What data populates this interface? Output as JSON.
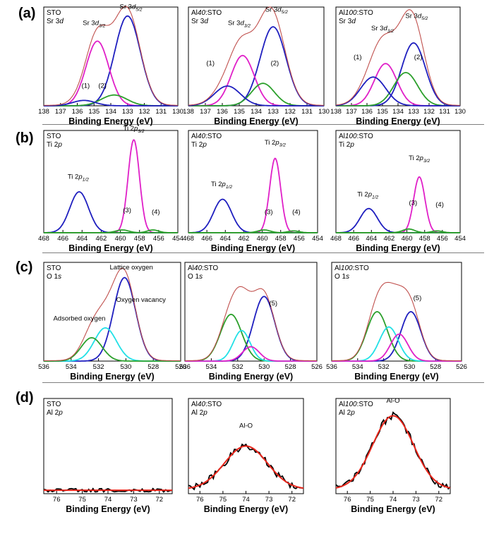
{
  "figure": {
    "rows": [
      {
        "label": "(a)"
      },
      {
        "label": "(b)"
      },
      {
        "label": "(c)"
      },
      {
        "label": "(d)"
      }
    ]
  },
  "colors": {
    "envelope": "#c0504d",
    "blue": "#1f1fbf",
    "magenta": "#e020c8",
    "green": "#2ca02c",
    "cyan": "#22e0e6",
    "raw": "#000000",
    "fit": "#e8251a",
    "axis": "#000000"
  },
  "chart_data": [
    {
      "type": "line",
      "sample": "STO",
      "core_level": "Sr 3d",
      "xlabel": "Binding Energy (eV)",
      "xlim": [
        138,
        130
      ],
      "xticks": [
        138,
        137,
        136,
        135,
        134,
        133,
        132,
        131,
        130
      ],
      "ylim": [
        0,
        1.1
      ],
      "series": [
        {
          "name": "Sr 3d5/2",
          "color": "blue",
          "peak": {
            "center": 133.0,
            "height": 1.0,
            "fwhm": 1.8
          }
        },
        {
          "name": "Sr 3d3/2",
          "color": "magenta",
          "peak": {
            "center": 134.8,
            "height": 0.72,
            "fwhm": 1.6
          }
        },
        {
          "name": "(2)",
          "color": "green",
          "peak": {
            "center": 133.8,
            "height": 0.12,
            "fwhm": 1.8
          }
        },
        {
          "name": "(1)",
          "color": "blue",
          "peak": {
            "center": 135.6,
            "height": 0.06,
            "fwhm": 1.6
          }
        }
      ],
      "envelope": true,
      "annotations": [
        {
          "text": "Sr 3d5/2",
          "x": 132.8,
          "y": 1.08
        },
        {
          "text": "Sr 3d3/2",
          "x": 135.0,
          "y": 0.9
        },
        {
          "text": "(1)",
          "x": 135.5,
          "y": 0.2
        },
        {
          "text": "(2)",
          "x": 134.5,
          "y": 0.2
        }
      ]
    },
    {
      "type": "line",
      "sample": "Al40:STO",
      "core_level": "Sr 3d",
      "xlabel": "Binding Energy (eV)",
      "xlim": [
        138,
        130
      ],
      "xticks": [
        138,
        137,
        136,
        135,
        134,
        133,
        132,
        131,
        130
      ],
      "ylim": [
        0,
        1.1
      ],
      "series": [
        {
          "name": "Sr 3d5/2",
          "color": "blue",
          "peak": {
            "center": 133.0,
            "height": 0.88,
            "fwhm": 1.8
          }
        },
        {
          "name": "Sr 3d3/2",
          "color": "magenta",
          "peak": {
            "center": 134.8,
            "height": 0.56,
            "fwhm": 1.6
          }
        },
        {
          "name": "(2)",
          "color": "green",
          "peak": {
            "center": 133.6,
            "height": 0.25,
            "fwhm": 1.6
          }
        },
        {
          "name": "(1)",
          "color": "blue",
          "peak": {
            "center": 135.7,
            "height": 0.22,
            "fwhm": 1.8
          }
        }
      ],
      "envelope": true,
      "annotations": [
        {
          "text": "Sr 3d5/2",
          "x": 132.8,
          "y": 1.05
        },
        {
          "text": "Sr 3d3/2",
          "x": 135.0,
          "y": 0.9
        },
        {
          "text": "(1)",
          "x": 136.7,
          "y": 0.45
        },
        {
          "text": "(2)",
          "x": 132.9,
          "y": 0.45
        }
      ]
    },
    {
      "type": "line",
      "sample": "Al100:STO",
      "core_level": "Sr 3d",
      "xlabel": "Binding Energy (eV)",
      "xlim": [
        138,
        130
      ],
      "xticks": [
        138,
        137,
        136,
        135,
        134,
        133,
        132,
        131,
        130
      ],
      "ylim": [
        0,
        1.1
      ],
      "series": [
        {
          "name": "Sr 3d5/2",
          "color": "blue",
          "peak": {
            "center": 133.0,
            "height": 0.7,
            "fwhm": 1.8
          }
        },
        {
          "name": "Sr 3d3/2",
          "color": "magenta",
          "peak": {
            "center": 134.8,
            "height": 0.47,
            "fwhm": 1.7
          }
        },
        {
          "name": "(2)",
          "color": "green",
          "peak": {
            "center": 133.5,
            "height": 0.37,
            "fwhm": 1.8
          }
        },
        {
          "name": "(1)",
          "color": "blue",
          "peak": {
            "center": 135.6,
            "height": 0.32,
            "fwhm": 1.9
          }
        }
      ],
      "envelope": true,
      "annotations": [
        {
          "text": "Sr 3d5/2",
          "x": 132.8,
          "y": 0.98
        },
        {
          "text": "Sr 3d3/2",
          "x": 135.0,
          "y": 0.84
        },
        {
          "text": "(1)",
          "x": 136.6,
          "y": 0.52
        },
        {
          "text": "(2)",
          "x": 132.7,
          "y": 0.52
        }
      ]
    },
    {
      "type": "line",
      "sample": "STO",
      "core_level": "Ti 2p",
      "xlabel": "Binding Energy (eV)",
      "xlim": [
        468,
        454
      ],
      "xticks": [
        468,
        466,
        464,
        462,
        460,
        458,
        456,
        454
      ],
      "ylim": [
        0,
        1.1
      ],
      "series": [
        {
          "name": "Ti 2p3/2",
          "color": "magenta",
          "peak": {
            "center": 458.6,
            "height": 1.0,
            "fwhm": 1.4
          }
        },
        {
          "name": "Ti 2p1/2",
          "color": "blue",
          "peak": {
            "center": 464.3,
            "height": 0.44,
            "fwhm": 2.3
          }
        },
        {
          "name": "(3)",
          "color": "green",
          "peak": {
            "center": 459.8,
            "height": 0.03,
            "fwhm": 1.6
          }
        },
        {
          "name": "(4)",
          "color": "green",
          "peak": {
            "center": 456.6,
            "height": 0.03,
            "fwhm": 1.4
          }
        }
      ],
      "envelope": false,
      "annotations": [
        {
          "text": "Ti 2p3/2",
          "x": 458.6,
          "y": 1.1
        },
        {
          "text": "Ti 2p1/2",
          "x": 464.4,
          "y": 0.58
        },
        {
          "text": "(3)",
          "x": 459.3,
          "y": 0.22
        },
        {
          "text": "(4)",
          "x": 456.3,
          "y": 0.2
        }
      ]
    },
    {
      "type": "line",
      "sample": "Al40:STO",
      "core_level": "Ti 2p",
      "xlabel": "Binding Energy (eV)",
      "xlim": [
        468,
        454
      ],
      "xticks": [
        468,
        466,
        464,
        462,
        460,
        458,
        456,
        454
      ],
      "ylim": [
        0,
        1.1
      ],
      "series": [
        {
          "name": "Ti 2p3/2",
          "color": "magenta",
          "peak": {
            "center": 458.6,
            "height": 0.8,
            "fwhm": 1.4
          }
        },
        {
          "name": "Ti 2p1/2",
          "color": "blue",
          "peak": {
            "center": 464.3,
            "height": 0.36,
            "fwhm": 2.3
          }
        },
        {
          "name": "(3)",
          "color": "green",
          "peak": {
            "center": 459.8,
            "height": 0.03,
            "fwhm": 1.6
          }
        },
        {
          "name": "(4)",
          "color": "green",
          "peak": {
            "center": 456.6,
            "height": 0.02,
            "fwhm": 1.4
          }
        }
      ],
      "envelope": false,
      "annotations": [
        {
          "text": "Ti 2p3/2",
          "x": 458.6,
          "y": 0.95
        },
        {
          "text": "Ti 2p1/2",
          "x": 464.4,
          "y": 0.5
        },
        {
          "text": "(3)",
          "x": 459.3,
          "y": 0.2
        },
        {
          "text": "(4)",
          "x": 456.3,
          "y": 0.2
        }
      ]
    },
    {
      "type": "line",
      "sample": "Al100:STO",
      "core_level": "Ti 2p",
      "xlabel": "Binding Energy (eV)",
      "xlim": [
        468,
        454
      ],
      "xticks": [
        468,
        466,
        464,
        462,
        460,
        458,
        456,
        454
      ],
      "ylim": [
        0,
        1.1
      ],
      "series": [
        {
          "name": "Ti 2p3/2",
          "color": "magenta",
          "peak": {
            "center": 458.6,
            "height": 0.6,
            "fwhm": 1.5
          }
        },
        {
          "name": "Ti 2p1/2",
          "color": "blue",
          "peak": {
            "center": 464.3,
            "height": 0.26,
            "fwhm": 2.3
          }
        },
        {
          "name": "(3)",
          "color": "green",
          "peak": {
            "center": 459.8,
            "height": 0.04,
            "fwhm": 1.6
          }
        },
        {
          "name": "(4)",
          "color": "green",
          "peak": {
            "center": 456.6,
            "height": 0.02,
            "fwhm": 1.4
          }
        }
      ],
      "envelope": false,
      "annotations": [
        {
          "text": "Ti 2p3/2",
          "x": 458.6,
          "y": 0.78
        },
        {
          "text": "Ti 2p1/2",
          "x": 464.4,
          "y": 0.39
        },
        {
          "text": "(3)",
          "x": 459.3,
          "y": 0.3
        },
        {
          "text": "(4)",
          "x": 456.3,
          "y": 0.28
        }
      ]
    },
    {
      "type": "line",
      "sample": "STO",
      "core_level": "O 1s",
      "xlabel": "Binding Energy (eV)",
      "xlim": [
        536,
        526
      ],
      "xticks": [
        536,
        534,
        532,
        530,
        528,
        526
      ],
      "ylim": [
        0,
        1.1
      ],
      "series": [
        {
          "name": "Lattice oxygen",
          "color": "blue",
          "peak": {
            "center": 530.1,
            "height": 0.93,
            "fwhm": 1.9
          }
        },
        {
          "name": "Oxygen vacancy",
          "color": "cyan",
          "peak": {
            "center": 531.5,
            "height": 0.37,
            "fwhm": 1.9
          }
        },
        {
          "name": "Adsorbed oxygen",
          "color": "green",
          "peak": {
            "center": 532.5,
            "height": 0.26,
            "fwhm": 1.8
          }
        }
      ],
      "envelope": true,
      "annotations": [
        {
          "text": "Lattice oxygen",
          "x": 529.6,
          "y": 1.02
        },
        {
          "text": "Oxygen vacancy",
          "x": 528.9,
          "y": 0.66
        },
        {
          "text": "Adsorbed oxygen",
          "x": 533.4,
          "y": 0.45
        }
      ]
    },
    {
      "type": "line",
      "sample": "Al40:STO",
      "core_level": "O 1s",
      "xlabel": "Binding Energy (eV)",
      "xlim": [
        536,
        526
      ],
      "xticks": [
        536,
        534,
        532,
        530,
        528,
        526
      ],
      "ylim": [
        0,
        1.1
      ],
      "series": [
        {
          "name": "blue",
          "color": "blue",
          "peak": {
            "center": 530.0,
            "height": 0.72,
            "fwhm": 1.9
          }
        },
        {
          "name": "green",
          "color": "green",
          "peak": {
            "center": 532.5,
            "height": 0.52,
            "fwhm": 1.9
          }
        },
        {
          "name": "cyan",
          "color": "cyan",
          "peak": {
            "center": 531.7,
            "height": 0.34,
            "fwhm": 1.5
          }
        },
        {
          "name": "(5)",
          "color": "magenta",
          "peak": {
            "center": 531.0,
            "height": 0.16,
            "fwhm": 1.5
          }
        }
      ],
      "envelope": true,
      "annotations": [
        {
          "text": "(5)",
          "x": 529.3,
          "y": 0.62
        }
      ]
    },
    {
      "type": "line",
      "sample": "Al100:STO",
      "core_level": "O 1s",
      "xlabel": "Binding Energy (eV)",
      "xlim": [
        536,
        526
      ],
      "xticks": [
        536,
        534,
        532,
        530,
        528,
        526
      ],
      "ylim": [
        0,
        1.1
      ],
      "series": [
        {
          "name": "blue",
          "color": "blue",
          "peak": {
            "center": 529.9,
            "height": 0.55,
            "fwhm": 1.8
          }
        },
        {
          "name": "green",
          "color": "green",
          "peak": {
            "center": 532.5,
            "height": 0.55,
            "fwhm": 1.9
          }
        },
        {
          "name": "cyan",
          "color": "cyan",
          "peak": {
            "center": 531.6,
            "height": 0.38,
            "fwhm": 1.7
          }
        },
        {
          "name": "(5)",
          "color": "magenta",
          "peak": {
            "center": 530.8,
            "height": 0.3,
            "fwhm": 1.6
          }
        }
      ],
      "envelope": true,
      "annotations": [
        {
          "text": "(5)",
          "x": 529.4,
          "y": 0.68
        }
      ]
    },
    {
      "type": "line",
      "sample": "STO",
      "core_level": "Al 2p",
      "xlabel": "Binding Energy (eV)",
      "xlim": [
        76.5,
        71.5
      ],
      "xticks": [
        76,
        75,
        74,
        73,
        72
      ],
      "ylim": [
        0,
        1.1
      ],
      "series": [
        {
          "name": "raw",
          "color": "raw",
          "noisy_flat": {
            "level": 0.04,
            "noise": 0.02
          }
        },
        {
          "name": "fit",
          "color": "fit",
          "flat": 0.04
        }
      ],
      "annotations": []
    },
    {
      "type": "line",
      "sample": "Al40:STO",
      "core_level": "Al 2p",
      "xlabel": "Binding Energy (eV)",
      "xlim": [
        76.5,
        71.5
      ],
      "xticks": [
        76,
        75,
        74,
        73,
        72
      ],
      "ylim": [
        0,
        1.1
      ],
      "series": [
        {
          "name": "raw",
          "color": "raw",
          "noisy_peak": {
            "center": 74.0,
            "height": 0.5,
            "fwhm": 2.2,
            "base": 0.05,
            "noise": 0.04
          }
        },
        {
          "name": "fit",
          "color": "fit",
          "peak": {
            "center": 74.0,
            "height": 0.5,
            "fwhm": 2.2,
            "base": 0.05
          }
        }
      ],
      "annotations": [
        {
          "text": "Al-O",
          "x": 74.0,
          "y": 0.76
        }
      ]
    },
    {
      "type": "line",
      "sample": "Al100:STO",
      "core_level": "Al 2p",
      "xlabel": "Binding Energy (eV)",
      "xlim": [
        76.5,
        71.5
      ],
      "xticks": [
        76,
        75,
        74,
        73,
        72
      ],
      "ylim": [
        0,
        1.1
      ],
      "series": [
        {
          "name": "raw",
          "color": "raw",
          "noisy_peak": {
            "center": 74.0,
            "height": 0.85,
            "fwhm": 2.1,
            "base": 0.05,
            "noise": 0.04
          }
        },
        {
          "name": "fit",
          "color": "fit",
          "peak": {
            "center": 74.0,
            "height": 0.85,
            "fwhm": 2.1,
            "base": 0.05
          }
        }
      ],
      "annotations": [
        {
          "text": "Al-O",
          "x": 74.0,
          "y": 1.05
        }
      ]
    }
  ]
}
